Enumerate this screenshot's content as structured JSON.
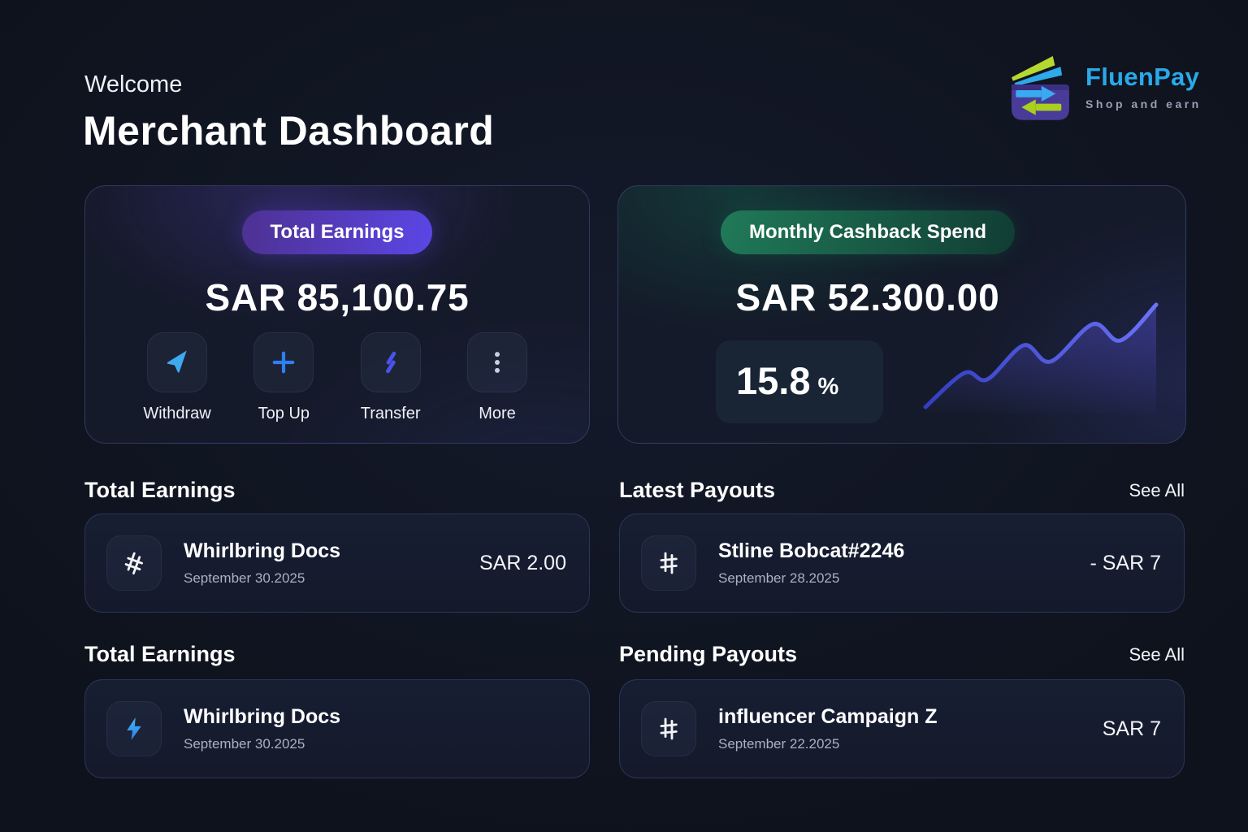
{
  "header": {
    "welcome": "Welcome",
    "title": "Merchant Dashboard"
  },
  "brand": {
    "name": "FluenPay",
    "tagline": "Shop and earn"
  },
  "earnings_card": {
    "badge": "Total Earnings",
    "amount": "SAR 85,100.75",
    "actions": [
      {
        "label": "Withdraw",
        "icon": "send-icon"
      },
      {
        "label": "Top Up",
        "icon": "plus-icon"
      },
      {
        "label": "Transfer",
        "icon": "transfer-icon"
      },
      {
        "label": "More",
        "icon": "more-vertical-icon"
      }
    ]
  },
  "cashback_card": {
    "badge": "Monthly Cashback Spend",
    "amount": "SAR 52.300.00",
    "percent": "15.8",
    "percent_symbol": "%",
    "sparkline": {
      "type": "area",
      "trend": "up",
      "points": [
        [
          4,
          130
        ],
        [
          52,
          88
        ],
        [
          80,
          96
        ],
        [
          125,
          54
        ],
        [
          158,
          74
        ],
        [
          210,
          28
        ],
        [
          244,
          48
        ],
        [
          288,
          4
        ]
      ]
    }
  },
  "sections": [
    {
      "title": "Total Earnings",
      "items": [
        {
          "icon": "slanted-hash-icon",
          "title": "Whirlbring Docs",
          "date": "September 30.2025",
          "amount": "SAR 2.00"
        }
      ]
    },
    {
      "title": "Latest Payouts",
      "see_all": "See All",
      "items": [
        {
          "icon": "hash-icon",
          "title": "Stline Bobcat#2246",
          "date": "September 28.2025",
          "amount": "- SAR 7"
        }
      ]
    },
    {
      "title": "Total Earnings",
      "items": [
        {
          "icon": "bolt-icon",
          "title": "Whirlbring Docs",
          "date": "September 30.2025",
          "amount": ""
        }
      ]
    },
    {
      "title": "Pending Payouts",
      "see_all": "See All",
      "items": [
        {
          "icon": "hash-icon",
          "title": "influencer Campaign Z",
          "date": "September 22.2025",
          "amount": "SAR 7"
        }
      ]
    }
  ],
  "colors": {
    "background": "#0f131e",
    "card": "#151a2b",
    "accent_purple": "#5b46e6",
    "accent_green": "#1e7a5c",
    "brand_blue": "#2aa9ea",
    "icon_blue": "#3fa9f0",
    "sparkline_indigo": "#5a62f0"
  }
}
